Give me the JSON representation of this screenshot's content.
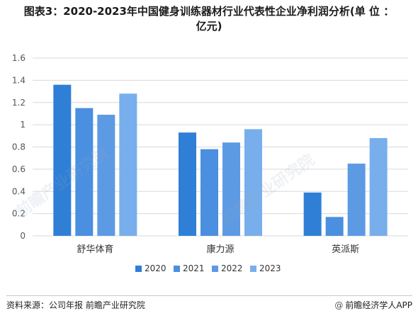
{
  "title": {
    "line1": "图表3：2020-2023年中国健身训练器材行业代表性企业净利润分析(单 位 ：",
    "line2": "亿元)"
  },
  "watermark_text": "前瞻产业研究院",
  "footer": {
    "source": "资料来源：公司年报 前瞻产业研究院",
    "brand": "前瞻经济学人APP",
    "brand_icon": "at-icon"
  },
  "colors": {
    "s2020": "#2f7fd6",
    "s2021": "#4a8fe0",
    "s2022": "#5d9ae4",
    "s2023": "#78aeeb",
    "grid": "#d9d9d9",
    "axis_text": "#555555"
  },
  "chart_data": {
    "type": "bar",
    "categories": [
      "舒华体育",
      "康力源",
      "英派斯"
    ],
    "series": [
      {
        "name": "2020",
        "values": [
          1.36,
          0.93,
          0.39
        ]
      },
      {
        "name": "2021",
        "values": [
          1.15,
          0.78,
          0.17
        ]
      },
      {
        "name": "2022",
        "values": [
          1.09,
          0.84,
          0.65
        ]
      },
      {
        "name": "2023",
        "values": [
          1.28,
          0.96,
          0.88
        ]
      }
    ],
    "yticks": [
      "0",
      "0.2",
      "0.4",
      "0.6",
      "0.8",
      "1",
      "1.2",
      "1.4",
      "1.6"
    ],
    "ylim": [
      0,
      1.6
    ],
    "grid": true,
    "legend_position": "bottom"
  }
}
